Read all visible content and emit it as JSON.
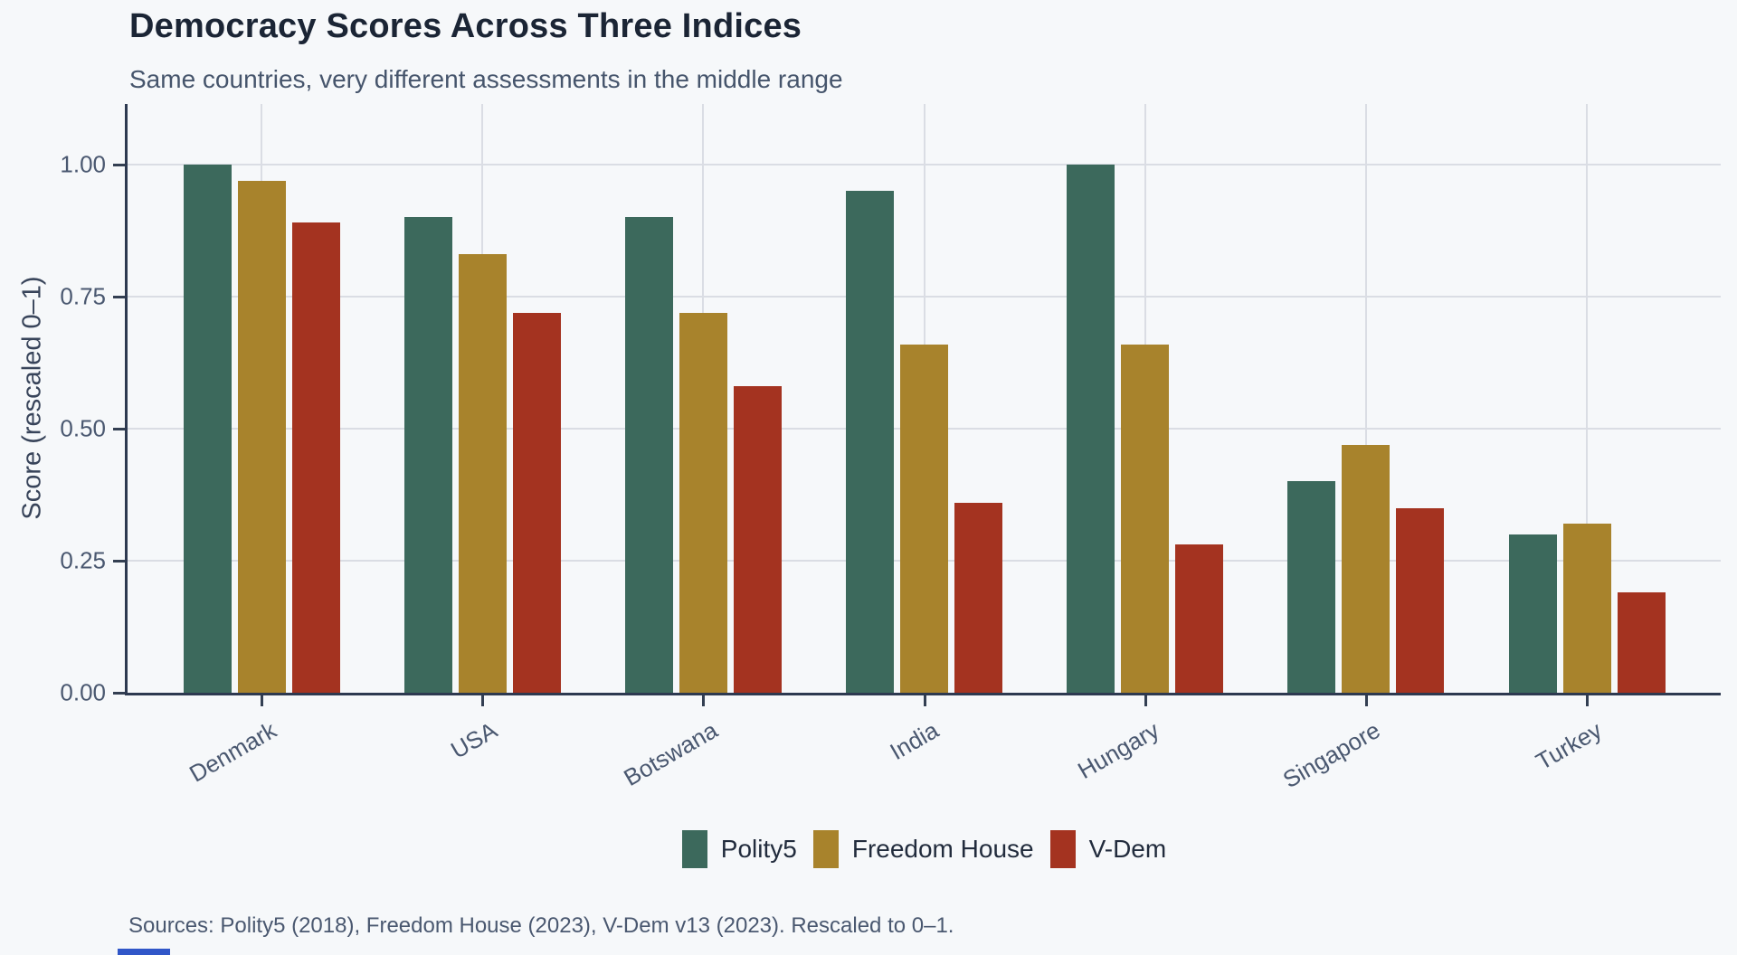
{
  "figure": {
    "background_color": "#f6f8fa"
  },
  "chart_data": {
    "type": "bar",
    "title": "Democracy Scores Across Three Indices",
    "subtitle": "Same countries, very different assessments in the middle range",
    "caption": "Sources: Polity5 (2018), Freedom House (2023), V-Dem v13 (2023). Rescaled to 0–1.",
    "xlabel": "",
    "ylabel": "Score (rescaled 0–1)",
    "ylim": [
      0,
      1.11
    ],
    "yticks": [
      0,
      0.25,
      0.5,
      0.75,
      1.0
    ],
    "ytick_labels": [
      "0.00",
      "0.25",
      "0.50",
      "0.75",
      "1.00"
    ],
    "categories": [
      "Denmark",
      "USA",
      "Botswana",
      "India",
      "Hungary",
      "Singapore",
      "Turkey"
    ],
    "series": [
      {
        "name": "Polity5",
        "color": "#3c695c",
        "values": [
          1.0,
          0.9,
          0.9,
          0.95,
          1.0,
          0.4,
          0.3
        ]
      },
      {
        "name": "Freedom House",
        "color": "#a8832c",
        "values": [
          0.97,
          0.83,
          0.72,
          0.66,
          0.66,
          0.47,
          0.32
        ]
      },
      {
        "name": "V-Dem",
        "color": "#a43320",
        "values": [
          0.89,
          0.72,
          0.58,
          0.36,
          0.28,
          0.35,
          0.19
        ]
      }
    ],
    "grid": "major-x-and-y",
    "legend_position": "bottom",
    "x_tick_label_angle": 30
  },
  "style": {
    "grid_color": "#dadde4",
    "axis_line_color": "#2d3950",
    "tick_color": "#333f52",
    "tick_label_color": "#4a5870",
    "title_color": "#1b2535",
    "subtitle_color": "#46556c",
    "blue_fragment_color": "#3056c8"
  }
}
